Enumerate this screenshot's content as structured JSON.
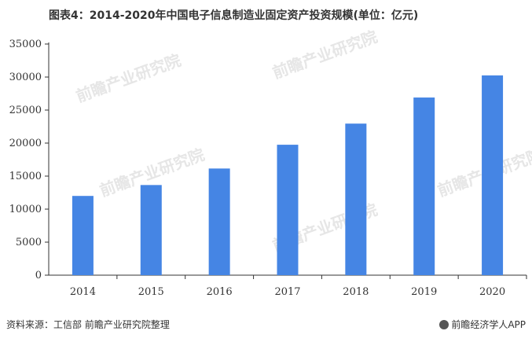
{
  "header": {
    "title": "图表4：2014-2020年中国电子信息制造业固定资产投资规模(单位：亿元)"
  },
  "footer": {
    "source": "资料来源：工信部 前瞻产业研究院整理",
    "brand": "前瞻经济学人APP"
  },
  "watermark": {
    "text": "前瞻产业研究院"
  },
  "colors": {
    "bar": "#4585e4",
    "axis": "#333333"
  },
  "chart_data": {
    "type": "bar",
    "title": "图表4：2014-2020年中国电子信息制造业固定资产投资规模(单位：亿元)",
    "xlabel": "",
    "ylabel": "",
    "categories": [
      "2014",
      "2015",
      "2016",
      "2017",
      "2018",
      "2019",
      "2020"
    ],
    "values": [
      12000,
      13650,
      16150,
      19750,
      22950,
      26900,
      30250
    ],
    "ylim": [
      0,
      35000
    ],
    "yticks": [
      0,
      5000,
      10000,
      15000,
      20000,
      25000,
      30000,
      35000
    ],
    "grid": false,
    "legend": "none"
  }
}
